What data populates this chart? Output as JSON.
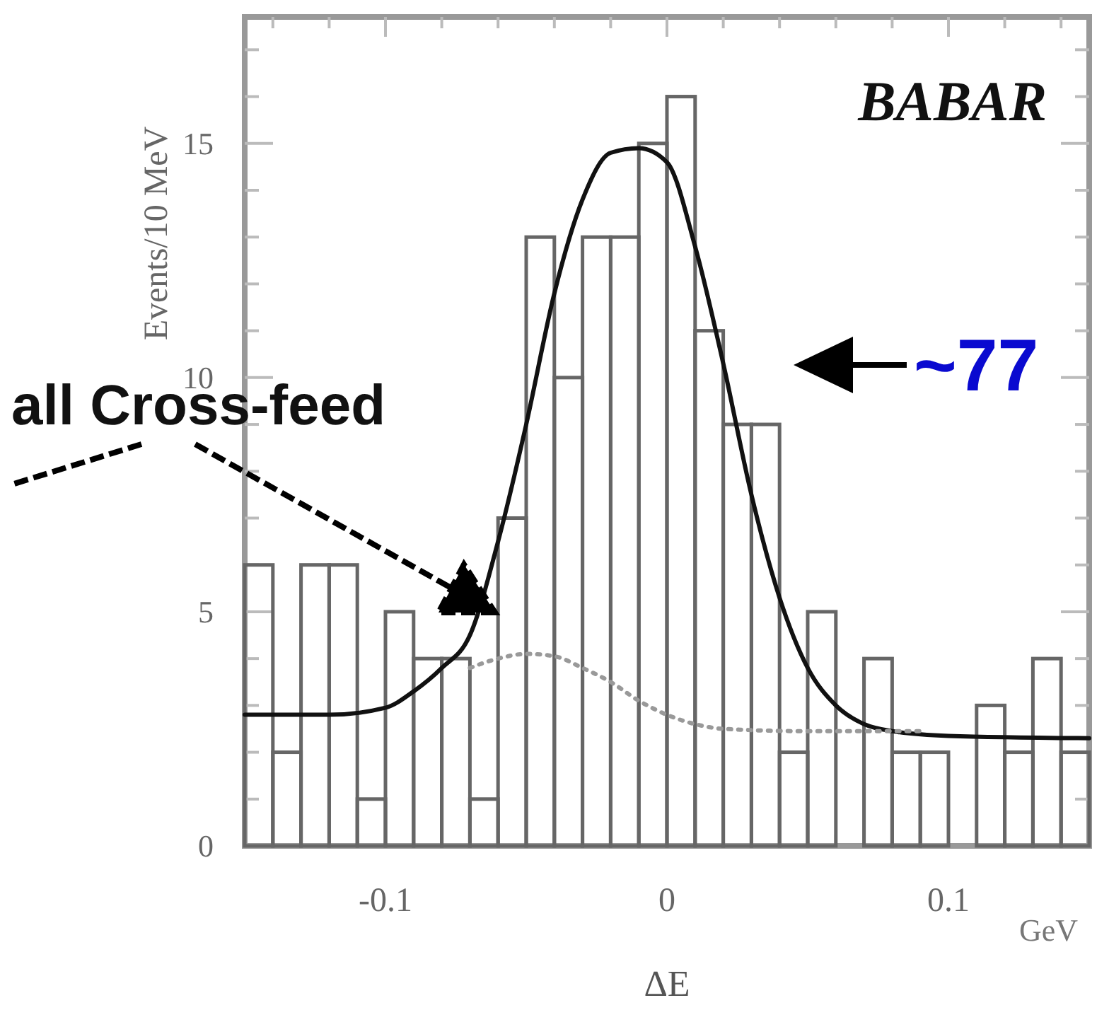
{
  "chart_data": {
    "type": "histogram",
    "xlabel": "ΔE",
    "ylabel": "Events/10 MeV",
    "xlim": [
      -0.15,
      0.15
    ],
    "ylim": [
      0,
      17.7
    ],
    "xticks": [
      {
        "value": -0.14,
        "label": null
      },
      {
        "value": -0.12,
        "label": null
      },
      {
        "value": -0.1,
        "label": "-0.1"
      },
      {
        "value": -0.08,
        "label": null
      },
      {
        "value": -0.06,
        "label": null
      },
      {
        "value": -0.04,
        "label": null
      },
      {
        "value": -0.02,
        "label": null
      },
      0,
      {
        "value": 0.02,
        "label": null
      },
      {
        "value": 0.04,
        "label": null
      },
      {
        "value": 0.06,
        "label": null
      },
      {
        "value": 0.08,
        "label": null
      },
      0.1,
      {
        "value": 0.12,
        "label": null
      },
      {
        "value": 0.14,
        "label": null
      }
    ],
    "yticks": [
      0,
      {
        "value": 1,
        "label": null
      },
      {
        "value": 2,
        "label": null
      },
      {
        "value": 3,
        "label": null
      },
      {
        "value": 4,
        "label": null
      },
      5,
      {
        "value": 6,
        "label": null
      },
      {
        "value": 7,
        "label": null
      },
      {
        "value": 8,
        "label": null
      },
      {
        "value": 9,
        "label": null
      },
      10,
      {
        "value": 11,
        "label": null
      },
      {
        "value": 12,
        "label": null
      },
      {
        "value": 13,
        "label": null
      },
      {
        "value": 14,
        "label": null
      },
      15,
      {
        "value": 16,
        "label": null
      },
      {
        "value": 17,
        "label": null
      }
    ],
    "grid": false,
    "series": [
      {
        "color": "#666666",
        "bins": [
          -0.15,
          -0.14,
          -0.13,
          -0.12,
          -0.11,
          -0.1,
          -0.09,
          -0.08,
          -0.07,
          -0.06,
          -0.05,
          -0.04,
          -0.03,
          -0.02,
          -0.01,
          0,
          0.01,
          0.02,
          0.03,
          0.04,
          0.05,
          0.06,
          0.07,
          0.08,
          0.09,
          0.1,
          0.11,
          0.12,
          0.13,
          0.14,
          0.15
        ],
        "values": [
          6,
          2,
          6,
          6,
          1,
          5,
          4,
          4,
          1,
          7,
          13,
          10,
          13,
          13,
          15,
          16,
          11,
          9,
          9,
          2,
          5,
          0,
          4,
          2,
          2,
          0,
          3,
          2,
          4,
          2
        ]
      },
      {
        "type": "line",
        "color": "#111111",
        "line_style": "solid",
        "x": [
          -0.15,
          -0.12,
          -0.1,
          -0.09,
          -0.08,
          -0.07,
          -0.06,
          -0.05,
          -0.04,
          -0.03,
          -0.02,
          -0.01,
          0,
          0.01,
          0.02,
          0.03,
          0.04,
          0.05,
          0.06,
          0.07,
          0.08,
          0.1,
          0.15
        ],
        "values": [
          2.8,
          2.8,
          2.95,
          3.3,
          3.8,
          4.5,
          6.5,
          9,
          11.8,
          13.8,
          14.8,
          14.9,
          14.6,
          12.8,
          10.3,
          7.5,
          5.3,
          3.8,
          3,
          2.6,
          2.45,
          2.35,
          2.3
        ]
      },
      {
        "type": "line",
        "color": "#999999",
        "line_style": "dotted",
        "x": [
          -0.07,
          -0.06,
          -0.05,
          -0.04,
          -0.03,
          -0.02,
          -0.01,
          0,
          0.01,
          0.02,
          0.05,
          0.09
        ],
        "values": [
          3.8,
          4,
          4.1,
          4.05,
          3.8,
          3.5,
          3.1,
          2.8,
          2.6,
          2.5,
          2.45,
          2.45
        ]
      }
    ],
    "annotations": [
      {
        "text": "BABAR"
      },
      {
        "text": "GeV"
      },
      "~77",
      "all Cross-feed"
    ]
  }
}
